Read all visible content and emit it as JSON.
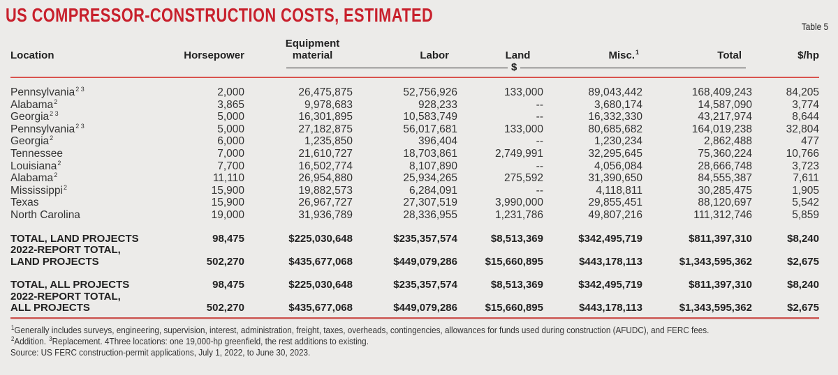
{
  "title": "US COMPRESSOR-CONSTRUCTION COSTS, ESTIMATED",
  "table_label": "Table 5",
  "headers": {
    "location": "Location",
    "horsepower": "Horsepower",
    "equipment_line1": "Equipment",
    "equipment_line2": "material",
    "labor": "Labor",
    "land": "Land",
    "misc": "Misc.",
    "misc_sup": "1",
    "total": "Total",
    "per_hp": "$/hp",
    "unit": "$"
  },
  "rows": [
    {
      "location": "Pennsylvania",
      "sup": "2 3",
      "hp": "2,000",
      "equipment": "26,475,875",
      "labor": "52,756,926",
      "land": "133,000",
      "misc": "89,043,442",
      "total": "168,409,243",
      "per_hp": "84,205"
    },
    {
      "location": "Alabama",
      "sup": "2",
      "hp": "3,865",
      "equipment": "9,978,683",
      "labor": "928,233",
      "land": "--",
      "misc": "3,680,174",
      "total": "14,587,090",
      "per_hp": "3,774"
    },
    {
      "location": "Georgia",
      "sup": "2 3",
      "hp": "5,000",
      "equipment": "16,301,895",
      "labor": "10,583,749",
      "land": "--",
      "misc": "16,332,330",
      "total": "43,217,974",
      "per_hp": "8,644"
    },
    {
      "location": "Pennsylvania",
      "sup": "2 3",
      "hp": "5,000",
      "equipment": "27,182,875",
      "labor": "56,017,681",
      "land": "133,000",
      "misc": "80,685,682",
      "total": "164,019,238",
      "per_hp": "32,804"
    },
    {
      "location": "Georgia",
      "sup": "2",
      "hp": "6,000",
      "equipment": "1,235,850",
      "labor": "396,404",
      "land": "--",
      "misc": "1,230,234",
      "total": "2,862,488",
      "per_hp": "477"
    },
    {
      "location": "Tennessee",
      "sup": "",
      "hp": "7,000",
      "equipment": "21,610,727",
      "labor": "18,703,861",
      "land": "2,749,991",
      "misc": "32,295,645",
      "total": "75,360,224",
      "per_hp": "10,766"
    },
    {
      "location": "Louisiana",
      "sup": "2",
      "hp": "7,700",
      "equipment": "16,502,774",
      "labor": "8,107,890",
      "land": "--",
      "misc": "4,056,084",
      "total": "28,666,748",
      "per_hp": "3,723"
    },
    {
      "location": "Alabama",
      "sup": "2",
      "hp": "11,110",
      "equipment": "26,954,880",
      "labor": "25,934,265",
      "land": "275,592",
      "misc": "31,390,650",
      "total": "84,555,387",
      "per_hp": "7,611"
    },
    {
      "location": "Mississippi",
      "sup": "2",
      "hp": "15,900",
      "equipment": "19,882,573",
      "labor": "6,284,091",
      "land": "--",
      "misc": "4,118,811",
      "total": "30,285,475",
      "per_hp": "1,905"
    },
    {
      "location": "Texas",
      "sup": "",
      "hp": "15,900",
      "equipment": "26,967,727",
      "labor": "27,307,519",
      "land": "3,990,000",
      "misc": "29,855,451",
      "total": "88,120,697",
      "per_hp": "5,542"
    },
    {
      "location": "North Carolina",
      "sup": "",
      "hp": "19,000",
      "equipment": "31,936,789",
      "labor": "28,336,955",
      "land": "1,231,786",
      "misc": "49,807,216",
      "total": "111,312,746",
      "per_hp": "5,859"
    }
  ],
  "totals": [
    {
      "line1": "TOTAL, LAND PROJECTS",
      "line2": "",
      "hp": "98,475",
      "equipment": "$225,030,648",
      "labor": "$235,357,574",
      "land": "$8,513,369",
      "misc": "$342,495,719",
      "total": "$811,397,310",
      "per_hp": "$8,240"
    },
    {
      "line1": "2022-REPORT TOTAL,",
      "line2": "LAND PROJECTS",
      "hp": "502,270",
      "equipment": "$435,677,068",
      "labor": "$449,079,286",
      "land": "$15,660,895",
      "misc": "$443,178,113",
      "total": "$1,343,595,362",
      "per_hp": "$2,675"
    },
    {
      "line1": "TOTAL, ALL PROJECTS",
      "line2": "",
      "hp": "98,475",
      "equipment": "$225,030,648",
      "labor": "$235,357,574",
      "land": "$8,513,369",
      "misc": "$342,495,719",
      "total": "$811,397,310",
      "per_hp": "$8,240"
    },
    {
      "line1": "2022-REPORT TOTAL,",
      "line2": "ALL PROJECTS",
      "hp": "502,270",
      "equipment": "$435,677,068",
      "labor": "$449,079,286",
      "land": "$15,660,895",
      "misc": "$443,178,113",
      "total": "$1,343,595,362",
      "per_hp": "$2,675"
    }
  ],
  "footnotes": {
    "note1_sup": "1",
    "note1": "Generally includes surveys, engineering, supervision, interest, administration, freight, taxes, overheads, contingencies, allowances for funds used during construction (AFUDC), and FERC fees.",
    "note2_sup": "2",
    "note2": "Addition. ",
    "note3_sup": "3",
    "note3": "Replacement. 4Three locations: one 19,000-hp greenfield, the rest additions to existing.",
    "source": "Source: US FERC construction-permit applications, July 1, 2022, to June 30, 2023."
  },
  "colors": {
    "title": "#c8202c",
    "rule": "#d9534f",
    "background": "#ecebe9"
  }
}
